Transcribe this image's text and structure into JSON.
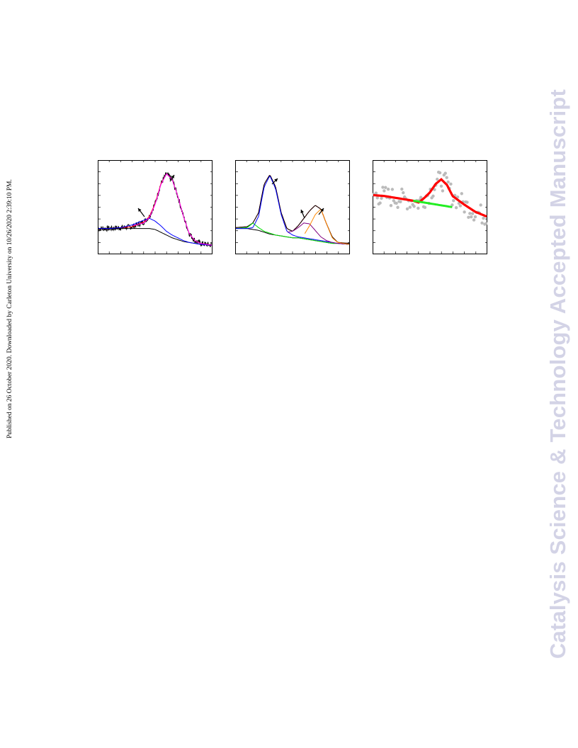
{
  "side_note": "Published on 26 October 2020. Downloaded by Carleton University on 10/26/2020 2:39:10 PM.",
  "watermark": "Catalysis Science & Technology Accepted Manuscript",
  "chart_data": [
    {
      "type": "line",
      "title": "",
      "xlim": [
        0,
        100
      ],
      "ylim": [
        0,
        100
      ],
      "x": [
        0,
        10,
        20,
        30,
        40,
        45,
        50,
        55,
        60,
        65,
        70,
        75,
        80,
        85,
        90,
        100
      ],
      "series": [
        {
          "values": [
            27,
            27,
            28,
            29,
            34,
            40,
            54,
            75,
            86,
            80,
            62,
            40,
            22,
            14,
            11,
            9
          ],
          "color": "#000000",
          "noisy": true
        },
        {
          "values": [
            27,
            27,
            28,
            29,
            34,
            40,
            54,
            75,
            86,
            80,
            62,
            40,
            22,
            14,
            11,
            9
          ],
          "color": "#ff0000"
        },
        {
          "values": [
            27,
            27,
            27,
            27,
            27,
            27,
            26,
            23,
            20,
            17,
            15,
            13,
            12,
            11,
            10,
            9
          ],
          "color": "#000000"
        },
        {
          "values": [
            27,
            27,
            28,
            31,
            36,
            38,
            35,
            30,
            24,
            20,
            17,
            14,
            12,
            11,
            10,
            9
          ],
          "color": "#0000ff"
        },
        {
          "values": [
            null,
            null,
            null,
            30,
            33,
            39,
            53,
            74,
            86,
            80,
            62,
            40,
            22,
            14,
            11,
            9
          ],
          "color": "#ff00ff"
        }
      ]
    },
    {
      "type": "line",
      "title": "",
      "xlim": [
        0,
        100
      ],
      "ylim": [
        0,
        100
      ],
      "x": [
        0,
        10,
        15,
        20,
        25,
        30,
        35,
        40,
        45,
        50,
        55,
        60,
        65,
        70,
        75,
        80,
        85,
        90,
        100
      ],
      "series": [
        {
          "values": [
            28,
            29,
            33,
            44,
            75,
            85,
            72,
            44,
            27,
            24,
            30,
            38,
            46,
            52,
            48,
            32,
            18,
            12,
            11
          ],
          "color": "#ff0000"
        },
        {
          "values": [
            28,
            29,
            33,
            44,
            75,
            85,
            72,
            44,
            27,
            24,
            30,
            38,
            46,
            52,
            48,
            32,
            18,
            12,
            11
          ],
          "color": "#000000"
        },
        {
          "values": [
            27,
            27,
            26,
            25,
            23,
            21,
            20,
            19,
            18,
            17,
            17,
            16,
            15,
            14,
            13,
            12,
            11,
            11,
            10
          ],
          "color": "#000000"
        },
        {
          "values": [
            27,
            28,
            33,
            28,
            24,
            22,
            20,
            19,
            18,
            17,
            17,
            16,
            15,
            14,
            13,
            12,
            11,
            11,
            10
          ],
          "color": "#00dd00"
        },
        {
          "values": [
            27,
            27,
            28,
            40,
            72,
            84,
            70,
            42,
            24,
            20,
            18,
            17,
            16,
            15,
            14,
            13,
            12,
            11,
            10
          ],
          "color": "#0000ff"
        },
        {
          "values": [
            null,
            null,
            null,
            null,
            null,
            null,
            null,
            null,
            23,
            24,
            28,
            33,
            32,
            25,
            18,
            14,
            12,
            11,
            10
          ],
          "color": "#800080"
        },
        {
          "values": [
            null,
            null,
            null,
            null,
            null,
            null,
            null,
            null,
            null,
            null,
            null,
            20,
            30,
            42,
            48,
            32,
            17,
            12,
            10
          ],
          "color": "#ff8800"
        }
      ]
    },
    {
      "type": "scatter",
      "title": "",
      "xlim": [
        0,
        100
      ],
      "ylim": [
        0,
        100
      ],
      "x": [
        0,
        10,
        20,
        30,
        35,
        40,
        45,
        50,
        55,
        60,
        65,
        70,
        80,
        90,
        100
      ],
      "series": [
        {
          "values": [
            63,
            62,
            60,
            58,
            57,
            55,
            60,
            66,
            75,
            80,
            74,
            62,
            53,
            45,
            40
          ],
          "color": "#bbbbbb",
          "scatter": true
        },
        {
          "values": [
            63,
            62,
            60,
            58,
            57,
            55,
            60,
            66,
            75,
            80,
            74,
            62,
            53,
            45,
            40
          ],
          "color": "#ff0000",
          "width": 3.2
        },
        {
          "values": [
            null,
            null,
            null,
            null,
            57,
            56,
            55,
            54,
            53,
            52,
            51,
            50,
            null,
            null,
            null
          ],
          "color": "#22ee22",
          "width": 3.0
        }
      ]
    }
  ]
}
